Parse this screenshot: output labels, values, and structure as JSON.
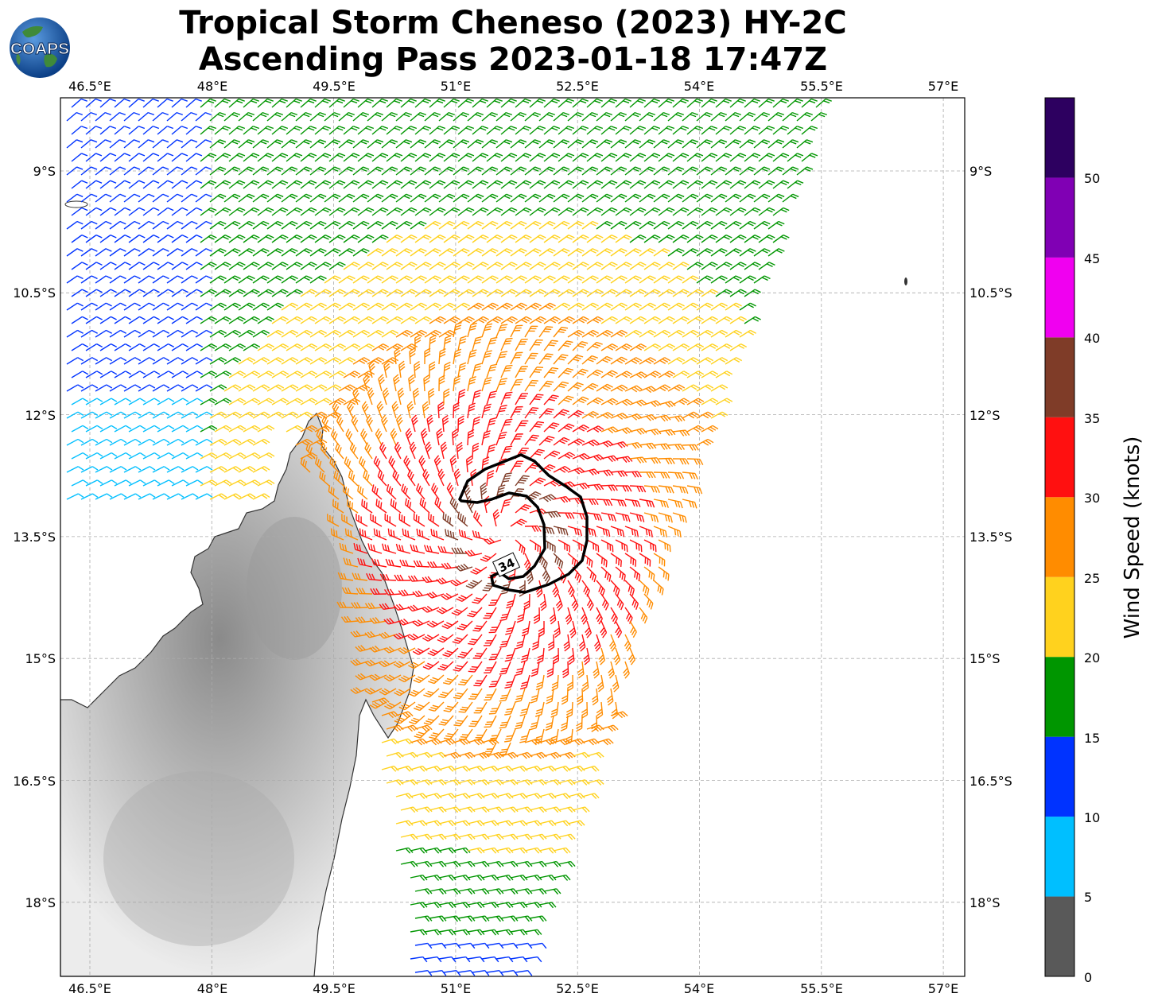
{
  "title": {
    "line1": "Tropical Storm Cheneso (2023) HY-2C",
    "line2": "Ascending Pass 2023-01-18 17:47Z"
  },
  "logo": {
    "text": "COAPS",
    "icon": "globe-logo-icon"
  },
  "axes": {
    "lon_labels": [
      "46.5°E",
      "48°E",
      "49.5°E",
      "51°E",
      "52.5°E",
      "54°E",
      "55.5°E",
      "57°E"
    ],
    "lon_values": [
      46.5,
      48,
      49.5,
      51,
      52.5,
      54,
      55.5,
      57
    ],
    "lat_labels": [
      "9°S",
      "10.5°S",
      "12°S",
      "13.5°S",
      "15°S",
      "16.5°S",
      "18°S"
    ],
    "lat_values": [
      -9,
      -10.5,
      -12,
      -13.5,
      -15,
      -16.5,
      -18
    ],
    "grid": "dashed"
  },
  "contour": {
    "label": "34"
  },
  "colorbar": {
    "label": "Wind Speed (knots)",
    "tick_labels": [
      "0",
      "5",
      "10",
      "15",
      "20",
      "25",
      "30",
      "35",
      "40",
      "45",
      "50"
    ],
    "bins": [
      {
        "from": 0,
        "to": 5,
        "color": "#595959"
      },
      {
        "from": 5,
        "to": 10,
        "color": "#00bfff"
      },
      {
        "from": 10,
        "to": 15,
        "color": "#0033ff"
      },
      {
        "from": 15,
        "to": 20,
        "color": "#009600"
      },
      {
        "from": 20,
        "to": 25,
        "color": "#ffd21e"
      },
      {
        "from": 25,
        "to": 30,
        "color": "#ff8c00"
      },
      {
        "from": 30,
        "to": 35,
        "color": "#ff1010"
      },
      {
        "from": 35,
        "to": 40,
        "color": "#7f3c28"
      },
      {
        "from": 40,
        "to": 45,
        "color": "#f000f0"
      },
      {
        "from": 45,
        "to": 50,
        "color": "#8000b4"
      },
      {
        "from": 50,
        "to": 55,
        "color": "#2d0060"
      }
    ]
  },
  "storm_center": {
    "lon": 51.6,
    "lat": -13.5
  }
}
